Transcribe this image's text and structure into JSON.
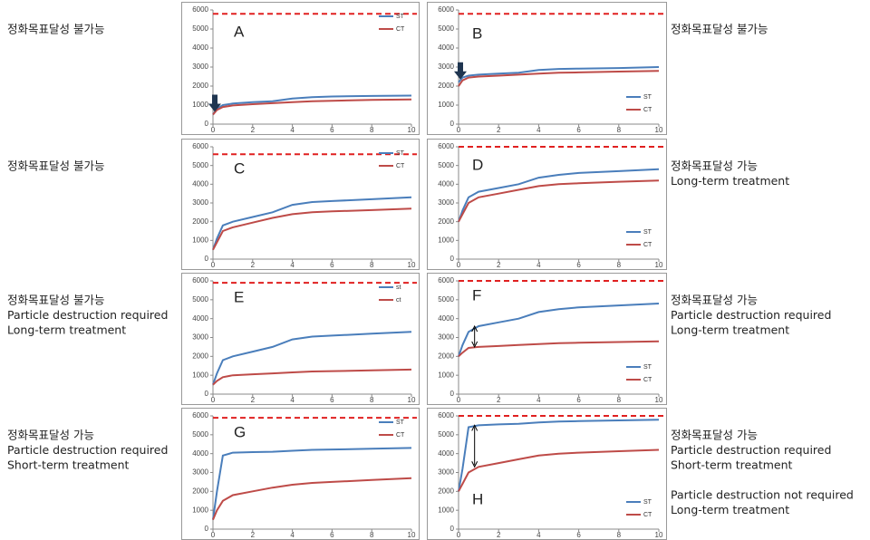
{
  "chart_data": [
    {
      "type": "line",
      "label": "A",
      "annotations": [
        [
          "정화목표달성 불가능"
        ]
      ],
      "legend": "upper right",
      "x": [
        0,
        0.2,
        0.5,
        1,
        2,
        3,
        4,
        5,
        6,
        8,
        10
      ],
      "xlim": [
        0,
        10
      ],
      "xticks": [
        0,
        2,
        4,
        6,
        8,
        10
      ],
      "ylim": [
        0,
        6000
      ],
      "yticks": [
        0,
        1000,
        2000,
        3000,
        4000,
        5000,
        6000
      ],
      "target_line": 5800,
      "series": [
        {
          "name": "ST",
          "color": "#4a7ebb",
          "values": [
            500,
            800,
            1000,
            1080,
            1150,
            1200,
            1350,
            1420,
            1450,
            1480,
            1500
          ]
        },
        {
          "name": "CT",
          "color": "#be4b48",
          "values": [
            500,
            750,
            900,
            980,
            1050,
            1100,
            1150,
            1200,
            1230,
            1270,
            1300
          ]
        }
      ]
    },
    {
      "type": "line",
      "label": "B",
      "annotations": [
        [
          "정화목표달성 불가능"
        ]
      ],
      "legend": "lower right",
      "x": [
        0,
        0.2,
        0.5,
        1,
        2,
        3,
        4,
        5,
        6,
        8,
        10
      ],
      "xlim": [
        0,
        10
      ],
      "xticks": [
        0,
        2,
        4,
        6,
        8,
        10
      ],
      "ylim": [
        0,
        6000
      ],
      "yticks": [
        0,
        1000,
        2000,
        3000,
        4000,
        5000,
        6000
      ],
      "target_line": 5800,
      "series": [
        {
          "name": "ST",
          "color": "#4a7ebb",
          "values": [
            2200,
            2450,
            2550,
            2600,
            2650,
            2700,
            2850,
            2900,
            2920,
            2950,
            3000
          ]
        },
        {
          "name": "CT",
          "color": "#be4b48",
          "values": [
            2000,
            2300,
            2450,
            2500,
            2550,
            2600,
            2650,
            2700,
            2720,
            2760,
            2800
          ]
        }
      ]
    },
    {
      "type": "line",
      "label": "C",
      "annotations": [
        [
          "정화목표달성 불가능"
        ]
      ],
      "legend": "upper right",
      "x": [
        0,
        0.2,
        0.5,
        1,
        2,
        3,
        4,
        5,
        6,
        8,
        10
      ],
      "xlim": [
        0,
        10
      ],
      "xticks": [
        0,
        2,
        4,
        6,
        8,
        10
      ],
      "ylim": [
        0,
        6000
      ],
      "yticks": [
        0,
        1000,
        2000,
        3000,
        4000,
        5000,
        6000
      ],
      "target_line": 5600,
      "series": [
        {
          "name": "ST",
          "color": "#4a7ebb",
          "values": [
            500,
            1100,
            1800,
            2000,
            2250,
            2500,
            2900,
            3050,
            3100,
            3200,
            3300
          ]
        },
        {
          "name": "CT",
          "color": "#be4b48",
          "values": [
            500,
            900,
            1500,
            1700,
            1950,
            2200,
            2400,
            2500,
            2550,
            2620,
            2700
          ]
        }
      ]
    },
    {
      "type": "line",
      "label": "D",
      "annotations": [
        [
          "정화목표달성 가능",
          "Long-term treatment"
        ]
      ],
      "legend": "lower right",
      "x": [
        0,
        0.2,
        0.5,
        1,
        2,
        3,
        4,
        5,
        6,
        8,
        10
      ],
      "xlim": [
        0,
        10
      ],
      "xticks": [
        0,
        2,
        4,
        6,
        8,
        10
      ],
      "ylim": [
        0,
        6000
      ],
      "yticks": [
        0,
        1000,
        2000,
        3000,
        4000,
        5000,
        6000
      ],
      "target_line": 6000,
      "series": [
        {
          "name": "ST",
          "color": "#4a7ebb",
          "values": [
            2000,
            2600,
            3300,
            3600,
            3800,
            4000,
            4350,
            4500,
            4600,
            4700,
            4800
          ]
        },
        {
          "name": "CT",
          "color": "#be4b48",
          "values": [
            2000,
            2400,
            3000,
            3300,
            3500,
            3700,
            3900,
            4000,
            4050,
            4130,
            4200
          ]
        }
      ]
    },
    {
      "type": "line",
      "label": "E",
      "annotations": [
        [
          "정화목표달성 불가능",
          "Particle destruction required",
          "Long-term treatment"
        ]
      ],
      "legend": "upper right",
      "x": [
        0,
        0.2,
        0.5,
        1,
        2,
        3,
        4,
        5,
        6,
        8,
        10
      ],
      "xlim": [
        0,
        10
      ],
      "xticks": [
        0,
        2,
        4,
        6,
        8,
        10
      ],
      "ylim": [
        0,
        6000
      ],
      "yticks": [
        0,
        1000,
        2000,
        3000,
        4000,
        5000,
        6000
      ],
      "target_line": 5900,
      "series": [
        {
          "name": "st",
          "color": "#4a7ebb",
          "values": [
            500,
            1100,
            1800,
            2000,
            2250,
            2500,
            2900,
            3050,
            3100,
            3200,
            3300
          ]
        },
        {
          "name": "ct",
          "color": "#be4b48",
          "values": [
            500,
            700,
            900,
            1000,
            1050,
            1100,
            1150,
            1200,
            1220,
            1260,
            1300
          ]
        }
      ]
    },
    {
      "type": "line",
      "label": "F",
      "annotations": [
        [
          "정화목표달성 가능",
          "Particle destruction required",
          "Long-term treatment"
        ]
      ],
      "legend": "lower right",
      "x": [
        0,
        0.2,
        0.5,
        1,
        2,
        3,
        4,
        5,
        6,
        8,
        10
      ],
      "xlim": [
        0,
        10
      ],
      "xticks": [
        0,
        2,
        4,
        6,
        8,
        10
      ],
      "ylim": [
        0,
        6000
      ],
      "yticks": [
        0,
        1000,
        2000,
        3000,
        4000,
        5000,
        6000
      ],
      "target_line": 6000,
      "series": [
        {
          "name": "ST",
          "color": "#4a7ebb",
          "values": [
            2000,
            2600,
            3300,
            3600,
            3800,
            4000,
            4350,
            4500,
            4600,
            4700,
            4800
          ]
        },
        {
          "name": "CT",
          "color": "#be4b48",
          "values": [
            2000,
            2200,
            2450,
            2500,
            2550,
            2600,
            2650,
            2700,
            2720,
            2760,
            2800
          ]
        }
      ]
    },
    {
      "type": "line",
      "label": "G",
      "annotations": [
        [
          "정화목표달성 가능",
          "Particle destruction required",
          "Short-term treatment"
        ]
      ],
      "legend": "upper right",
      "x": [
        0,
        0.2,
        0.5,
        1,
        2,
        3,
        4,
        5,
        6,
        8,
        10
      ],
      "xlim": [
        0,
        10
      ],
      "xticks": [
        0,
        2,
        4,
        6,
        8,
        10
      ],
      "ylim": [
        0,
        6000
      ],
      "yticks": [
        0,
        1000,
        2000,
        3000,
        4000,
        5000,
        6000
      ],
      "target_line": 5900,
      "series": [
        {
          "name": "ST",
          "color": "#4a7ebb",
          "values": [
            500,
            2000,
            3900,
            4050,
            4080,
            4100,
            4150,
            4200,
            4220,
            4260,
            4300
          ]
        },
        {
          "name": "CT",
          "color": "#be4b48",
          "values": [
            500,
            1000,
            1500,
            1800,
            2000,
            2200,
            2350,
            2450,
            2500,
            2600,
            2700
          ]
        }
      ]
    },
    {
      "type": "line",
      "label": "H",
      "annotations": [
        [
          "정화목표달성 가능",
          "Particle destruction required",
          "Short-term treatment"
        ],
        [
          "Particle destruction not required",
          "Long-term treatment"
        ]
      ],
      "legend": "lower right",
      "x": [
        0,
        0.2,
        0.5,
        1,
        2,
        3,
        4,
        5,
        6,
        8,
        10
      ],
      "xlim": [
        0,
        10
      ],
      "xticks": [
        0,
        2,
        4,
        6,
        8,
        10
      ],
      "ylim": [
        0,
        6000
      ],
      "yticks": [
        0,
        1000,
        2000,
        3000,
        4000,
        5000,
        6000
      ],
      "target_line": 6000,
      "series": [
        {
          "name": "ST",
          "color": "#4a7ebb",
          "values": [
            2000,
            3200,
            5400,
            5500,
            5550,
            5580,
            5650,
            5700,
            5720,
            5760,
            5800
          ]
        },
        {
          "name": "CT",
          "color": "#be4b48",
          "values": [
            2000,
            2400,
            3000,
            3300,
            3500,
            3700,
            3900,
            4000,
            4050,
            4130,
            4200
          ]
        }
      ]
    }
  ]
}
